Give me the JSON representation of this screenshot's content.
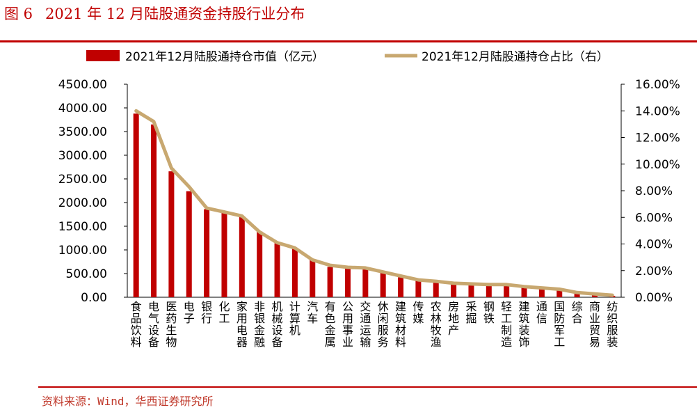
{
  "figure": {
    "number": "图 6",
    "title": "2021 年 12 月陆股通资金持股行业分布"
  },
  "source": "资料来源：Wind，华西证券研究所",
  "colors": {
    "bar": "#c00000",
    "line": "#c8a870",
    "title": "#c00000",
    "rule": "#c00000"
  },
  "chart_data": {
    "type": "bar",
    "categories": [
      "食品饮料",
      "电气设备",
      "医药生物",
      "电子",
      "银行",
      "化工",
      "家用电器",
      "非银金融",
      "机械设备",
      "计算机",
      "汽车",
      "有色金属",
      "公用事业",
      "交通运输",
      "休闲服务",
      "建筑材料",
      "传媒",
      "农林牧渔",
      "房地产",
      "采掘",
      "钢铁",
      "轻工制造",
      "建筑装饰",
      "通信",
      "国防军工",
      "综合",
      "商业贸易",
      "纺织服装"
    ],
    "series": [
      {
        "name": "2021年12月陆股通持仓市值（亿元）",
        "type": "bar",
        "axis": "left",
        "values": [
          3880,
          3650,
          2660,
          2240,
          1860,
          1790,
          1700,
          1390,
          1140,
          1030,
          800,
          640,
          620,
          600,
          520,
          420,
          370,
          340,
          300,
          280,
          270,
          260,
          230,
          190,
          160,
          80,
          50,
          30
        ]
      },
      {
        "name": "2021年12月陆股通持仓占比（右）",
        "type": "line",
        "axis": "right",
        "values": [
          14.0,
          13.2,
          9.7,
          8.3,
          6.7,
          6.4,
          6.1,
          4.9,
          4.1,
          3.7,
          2.8,
          2.4,
          2.25,
          2.2,
          1.9,
          1.6,
          1.3,
          1.2,
          1.05,
          1.0,
          0.95,
          0.95,
          0.8,
          0.7,
          0.6,
          0.35,
          0.25,
          0.15
        ]
      }
    ],
    "y_left": {
      "ylim": [
        0,
        4500
      ],
      "ticks": [
        "0.00",
        "500.00",
        "1000.00",
        "1500.00",
        "2000.00",
        "2500.00",
        "3000.00",
        "3500.00",
        "4000.00",
        "4500.00"
      ]
    },
    "y_right": {
      "ylim": [
        0,
        16
      ],
      "ticks": [
        "0.00%",
        "2.00%",
        "4.00%",
        "6.00%",
        "8.00%",
        "10.00%",
        "12.00%",
        "14.00%",
        "16.00%"
      ]
    },
    "legend_position": "top",
    "grid": false
  }
}
